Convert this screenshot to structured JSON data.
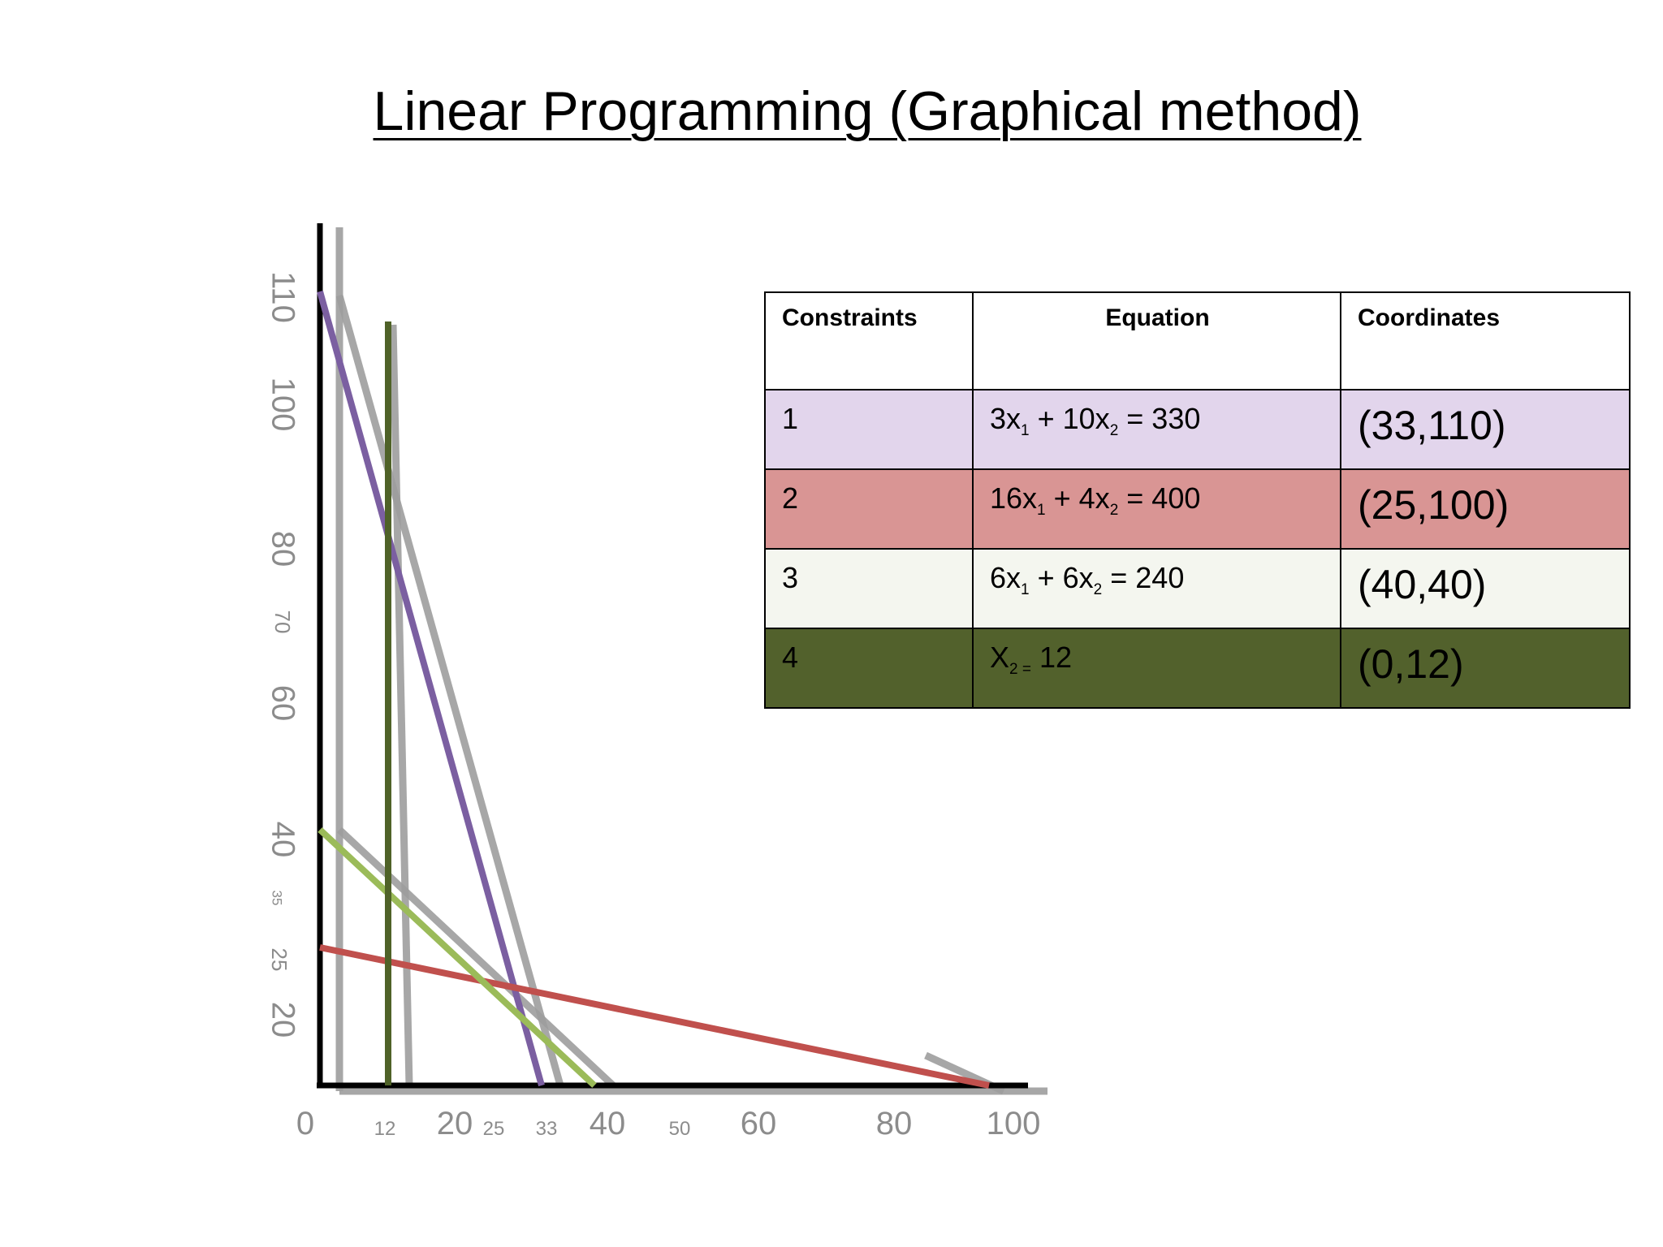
{
  "title": "Linear Programming (Graphical method)",
  "table": {
    "headers": [
      "Constraints",
      "Equation",
      "Coordinates"
    ],
    "rows": [
      {
        "constraint": "1",
        "eq_a": "3x",
        "eq_a_sub": "1",
        "eq_b": " + 10x",
        "eq_b_sub": "2",
        "eq_c": " = 330",
        "coordinates": "(33,110)",
        "color": "#e2d5ec"
      },
      {
        "constraint": "2",
        "eq_a": "16x",
        "eq_a_sub": "1",
        "eq_b": " + 4x",
        "eq_b_sub": "2",
        "eq_c": " = 400",
        "coordinates": "(25,100)",
        "color": "#d99594"
      },
      {
        "constraint": "3",
        "eq_a": "6x",
        "eq_a_sub": "1",
        "eq_b": " + 6x",
        "eq_b_sub": "2",
        "eq_c": " = 240",
        "coordinates": "(40,40)",
        "color": "#f4f6ef"
      },
      {
        "constraint": "4",
        "eq_a": "X",
        "eq_a_sub": "2 =",
        "eq_b": " 12",
        "eq_b_sub": "",
        "eq_c": "",
        "coordinates": "(0,12)",
        "color": "#52612c"
      }
    ]
  },
  "chart_data": {
    "type": "line",
    "x_ticks": [
      "0",
      "12",
      "20",
      "25",
      "33",
      "40",
      "50",
      "60",
      "80",
      "100"
    ],
    "y_ticks": [
      "110",
      "100",
      "80",
      "70",
      "60",
      "40",
      "35",
      "25",
      "20"
    ],
    "series": [
      {
        "x": [
          0,
          33
        ],
        "y": [
          110,
          0
        ],
        "color": "#7b5fa1"
      },
      {
        "x": [
          0,
          100
        ],
        "y": [
          25,
          0
        ],
        "color": "#c0504d"
      },
      {
        "x": [
          0,
          40
        ],
        "y": [
          40,
          0
        ],
        "color": "#9bbb59"
      },
      {
        "x": [
          12,
          12
        ],
        "y": [
          0,
          100
        ],
        "color": "#4f6228"
      }
    ],
    "xlim": [
      0,
      100
    ],
    "ylim": [
      0,
      110
    ],
    "grid": false
  }
}
